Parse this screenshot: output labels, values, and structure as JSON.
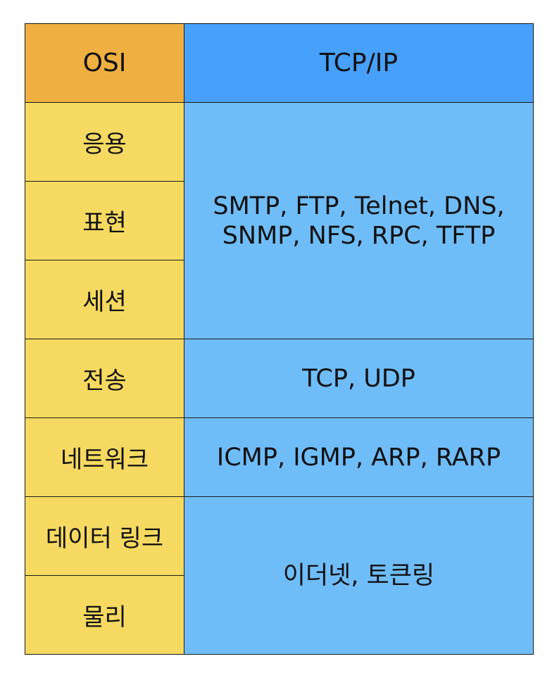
{
  "headers": {
    "osi": "OSI",
    "tcpip": "TCP/IP"
  },
  "osi_layers": [
    "응용",
    "표현",
    "세션",
    "전송",
    "네트워크",
    "데이터 링크",
    "물리"
  ],
  "tcpip_protocols": {
    "application": {
      "line1": "SMTP, FTP, Telnet, DNS,",
      "line2": "SNMP, NFS, RPC, TFTP"
    },
    "transport": "TCP, UDP",
    "internet": "ICMP, IGMP, ARP, RARP",
    "link": "이더넷, 토큰링"
  },
  "colors": {
    "osi_header": "#efb041",
    "tcpip_header": "#47a0fa",
    "osi_cells": "#f6d960",
    "tcpip_cells": "#6fbdf8",
    "border": "#1b1b1b"
  }
}
